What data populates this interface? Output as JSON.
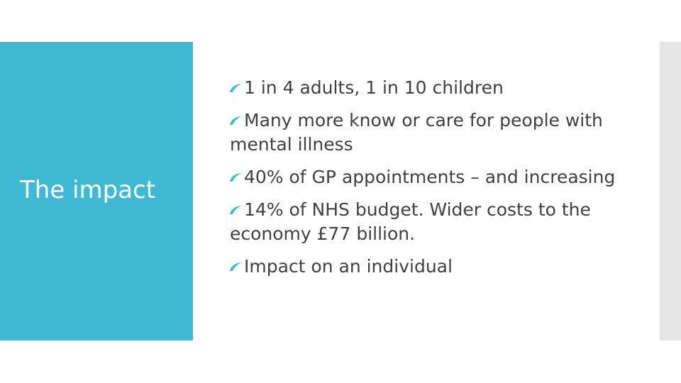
{
  "slide": {
    "title": "The impact",
    "bullets": [
      "1 in 4 adults, 1 in 10 children",
      "Many more know or care for people with mental illness",
      "40% of GP appointments – and increasing",
      "14% of NHS budget. Wider costs to the economy £77 billion.",
      "Impact on an individual"
    ]
  }
}
